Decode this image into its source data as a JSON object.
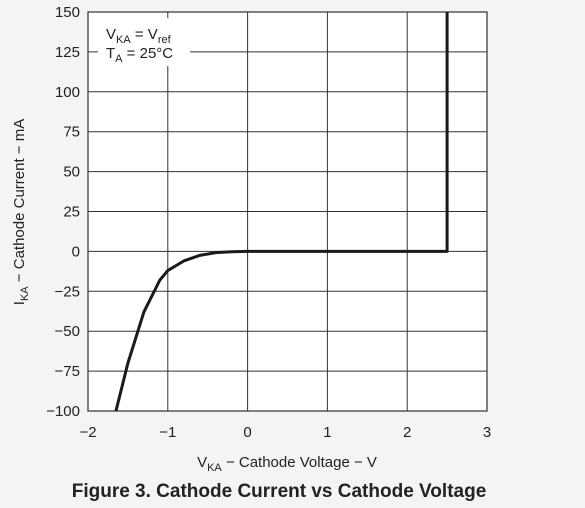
{
  "chart_data": {
    "type": "line",
    "title": "Figure 3. Cathode Current vs Cathode Voltage",
    "x_label": [
      "V",
      "KA",
      " − Cathode Voltage − V"
    ],
    "y_label": [
      "I",
      "KA",
      " − Cathode Current − mA"
    ],
    "annotations": [
      [
        "V",
        "KA",
        " = V",
        "ref"
      ],
      [
        "T",
        "A",
        " = 25°C"
      ]
    ],
    "x": [
      -1.65,
      -1.5,
      -1.3,
      -1.1,
      -1.0,
      -0.8,
      -0.6,
      -0.4,
      -0.2,
      0,
      2.5,
      2.5
    ],
    "series": [
      {
        "color": "#1a1a1a",
        "values": [
          -100,
          -70,
          -38,
          -18,
          -12,
          -6,
          -2.5,
          -0.8,
          -0.2,
          0,
          0,
          150
        ]
      }
    ],
    "xlim": [
      -2,
      3
    ],
    "xticks": [
      {
        "value": -2,
        "label": "−2"
      },
      {
        "value": -1,
        "label": "−1"
      },
      0,
      1,
      2,
      3
    ],
    "ylim": [
      -100,
      150
    ],
    "yticks": [
      {
        "value": -100,
        "label": "−100"
      },
      {
        "value": -75,
        "label": "−75"
      },
      {
        "value": -50,
        "label": "−50"
      },
      {
        "value": -25,
        "label": "−25"
      },
      0,
      25,
      50,
      75,
      100,
      125,
      150
    ],
    "grid": true
  }
}
